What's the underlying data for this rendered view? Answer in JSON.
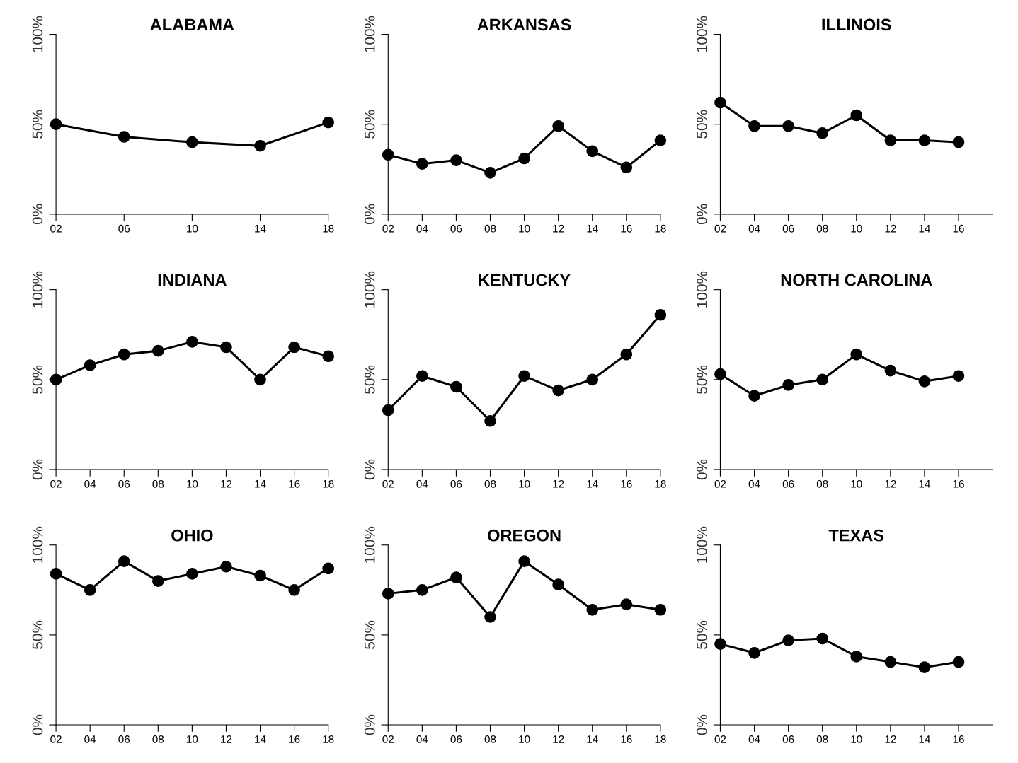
{
  "chart_data": [
    {
      "type": "line",
      "title": "ALABAMA",
      "x": [
        2,
        6,
        10,
        14,
        18
      ],
      "values": [
        50,
        43,
        40,
        38,
        51
      ],
      "color": "#000000",
      "marker": "circle",
      "line_style": "solid",
      "grid": false,
      "xlim": [
        2,
        18
      ],
      "ylim": [
        0,
        100
      ],
      "xticks": [
        {
          "value": 2,
          "label": "02"
        },
        {
          "value": 6,
          "label": "06"
        },
        10,
        14,
        18
      ],
      "yticks": [
        {
          "value": 0,
          "label": "0%"
        },
        {
          "value": 50,
          "label": "50%"
        },
        {
          "value": 100,
          "label": "100%"
        }
      ]
    },
    {
      "type": "line",
      "title": "ARKANSAS",
      "x": [
        2,
        4,
        6,
        8,
        10,
        12,
        14,
        16,
        18
      ],
      "values": [
        33,
        28,
        30,
        23,
        31,
        49,
        35,
        26,
        41
      ],
      "color": "#000000",
      "marker": "circle",
      "line_style": "solid",
      "grid": false,
      "xlim": [
        2,
        18
      ],
      "ylim": [
        0,
        100
      ],
      "xticks": [
        {
          "value": 2,
          "label": "02"
        },
        {
          "value": 4,
          "label": "04"
        },
        {
          "value": 6,
          "label": "06"
        },
        {
          "value": 8,
          "label": "08"
        },
        10,
        12,
        14,
        16,
        18
      ],
      "yticks": [
        {
          "value": 0,
          "label": "0%"
        },
        {
          "value": 50,
          "label": "50%"
        },
        {
          "value": 100,
          "label": "100%"
        }
      ]
    },
    {
      "type": "line",
      "title": "ILLINOIS",
      "x": [
        2,
        4,
        6,
        8,
        10,
        12,
        14,
        16
      ],
      "values": [
        62,
        49,
        49,
        45,
        55,
        41,
        41,
        40
      ],
      "color": "#000000",
      "marker": "circle",
      "line_style": "solid",
      "grid": false,
      "xlim": [
        2,
        18
      ],
      "ylim": [
        0,
        100
      ],
      "xticks": [
        {
          "value": 2,
          "label": "02"
        },
        {
          "value": 4,
          "label": "04"
        },
        {
          "value": 6,
          "label": "06"
        },
        {
          "value": 8,
          "label": "08"
        },
        10,
        12,
        14,
        16
      ],
      "yticks": [
        {
          "value": 0,
          "label": "0%"
        },
        {
          "value": 50,
          "label": "50%"
        },
        {
          "value": 100,
          "label": "100%"
        }
      ]
    },
    {
      "type": "line",
      "title": "INDIANA",
      "x": [
        2,
        4,
        6,
        8,
        10,
        12,
        14,
        16,
        18
      ],
      "values": [
        50,
        58,
        64,
        66,
        71,
        68,
        50,
        68,
        63
      ],
      "color": "#000000",
      "marker": "circle",
      "line_style": "solid",
      "grid": false,
      "xlim": [
        2,
        18
      ],
      "ylim": [
        0,
        100
      ],
      "xticks": [
        {
          "value": 2,
          "label": "02"
        },
        {
          "value": 4,
          "label": "04"
        },
        {
          "value": 6,
          "label": "06"
        },
        {
          "value": 8,
          "label": "08"
        },
        10,
        12,
        14,
        16,
        18
      ],
      "yticks": [
        {
          "value": 0,
          "label": "0%"
        },
        {
          "value": 50,
          "label": "50%"
        },
        {
          "value": 100,
          "label": "100%"
        }
      ]
    },
    {
      "type": "line",
      "title": "KENTUCKY",
      "x": [
        2,
        4,
        6,
        8,
        10,
        12,
        14,
        16,
        18
      ],
      "values": [
        33,
        52,
        46,
        27,
        52,
        44,
        50,
        64,
        86
      ],
      "color": "#000000",
      "marker": "circle",
      "line_style": "solid",
      "grid": false,
      "xlim": [
        2,
        18
      ],
      "ylim": [
        0,
        100
      ],
      "xticks": [
        {
          "value": 2,
          "label": "02"
        },
        {
          "value": 4,
          "label": "04"
        },
        {
          "value": 6,
          "label": "06"
        },
        {
          "value": 8,
          "label": "08"
        },
        10,
        12,
        14,
        16,
        18
      ],
      "yticks": [
        {
          "value": 0,
          "label": "0%"
        },
        {
          "value": 50,
          "label": "50%"
        },
        {
          "value": 100,
          "label": "100%"
        }
      ]
    },
    {
      "type": "line",
      "title": "NORTH CAROLINA",
      "x": [
        2,
        4,
        6,
        8,
        10,
        12,
        14,
        16
      ],
      "values": [
        53,
        41,
        47,
        50,
        64,
        55,
        49,
        52
      ],
      "color": "#000000",
      "marker": "circle",
      "line_style": "solid",
      "grid": false,
      "xlim": [
        2,
        18
      ],
      "ylim": [
        0,
        100
      ],
      "xticks": [
        {
          "value": 2,
          "label": "02"
        },
        {
          "value": 4,
          "label": "04"
        },
        {
          "value": 6,
          "label": "06"
        },
        {
          "value": 8,
          "label": "08"
        },
        10,
        12,
        14,
        16
      ],
      "yticks": [
        {
          "value": 0,
          "label": "0%"
        },
        {
          "value": 50,
          "label": "50%"
        },
        {
          "value": 100,
          "label": "100%"
        }
      ]
    },
    {
      "type": "line",
      "title": "OHIO",
      "x": [
        2,
        4,
        6,
        8,
        10,
        12,
        14,
        16,
        18
      ],
      "values": [
        84,
        75,
        91,
        80,
        84,
        88,
        83,
        75,
        87
      ],
      "color": "#000000",
      "marker": "circle",
      "line_style": "solid",
      "grid": false,
      "xlim": [
        2,
        18
      ],
      "ylim": [
        0,
        100
      ],
      "xticks": [
        {
          "value": 2,
          "label": "02"
        },
        {
          "value": 4,
          "label": "04"
        },
        {
          "value": 6,
          "label": "06"
        },
        {
          "value": 8,
          "label": "08"
        },
        10,
        12,
        14,
        16,
        18
      ],
      "yticks": [
        {
          "value": 0,
          "label": "0%"
        },
        {
          "value": 50,
          "label": "50%"
        },
        {
          "value": 100,
          "label": "100%"
        }
      ]
    },
    {
      "type": "line",
      "title": "OREGON",
      "x": [
        2,
        4,
        6,
        8,
        10,
        12,
        14,
        16,
        18
      ],
      "values": [
        73,
        75,
        82,
        60,
        91,
        78,
        64,
        67,
        64
      ],
      "color": "#000000",
      "marker": "circle",
      "line_style": "solid",
      "grid": false,
      "xlim": [
        2,
        18
      ],
      "ylim": [
        0,
        100
      ],
      "xticks": [
        {
          "value": 2,
          "label": "02"
        },
        {
          "value": 4,
          "label": "04"
        },
        {
          "value": 6,
          "label": "06"
        },
        {
          "value": 8,
          "label": "08"
        },
        10,
        12,
        14,
        16,
        18
      ],
      "yticks": [
        {
          "value": 0,
          "label": "0%"
        },
        {
          "value": 50,
          "label": "50%"
        },
        {
          "value": 100,
          "label": "100%"
        }
      ]
    },
    {
      "type": "line",
      "title": "TEXAS",
      "x": [
        2,
        4,
        6,
        8,
        10,
        12,
        14,
        16
      ],
      "values": [
        45,
        40,
        47,
        48,
        38,
        35,
        32,
        35
      ],
      "color": "#000000",
      "marker": "circle",
      "line_style": "solid",
      "grid": false,
      "xlim": [
        2,
        18
      ],
      "ylim": [
        0,
        100
      ],
      "xticks": [
        {
          "value": 2,
          "label": "02"
        },
        {
          "value": 4,
          "label": "04"
        },
        {
          "value": 6,
          "label": "06"
        },
        {
          "value": 8,
          "label": "08"
        },
        10,
        12,
        14,
        16
      ],
      "yticks": [
        {
          "value": 0,
          "label": "0%"
        },
        {
          "value": 50,
          "label": "50%"
        },
        {
          "value": 100,
          "label": "100%"
        }
      ]
    }
  ]
}
